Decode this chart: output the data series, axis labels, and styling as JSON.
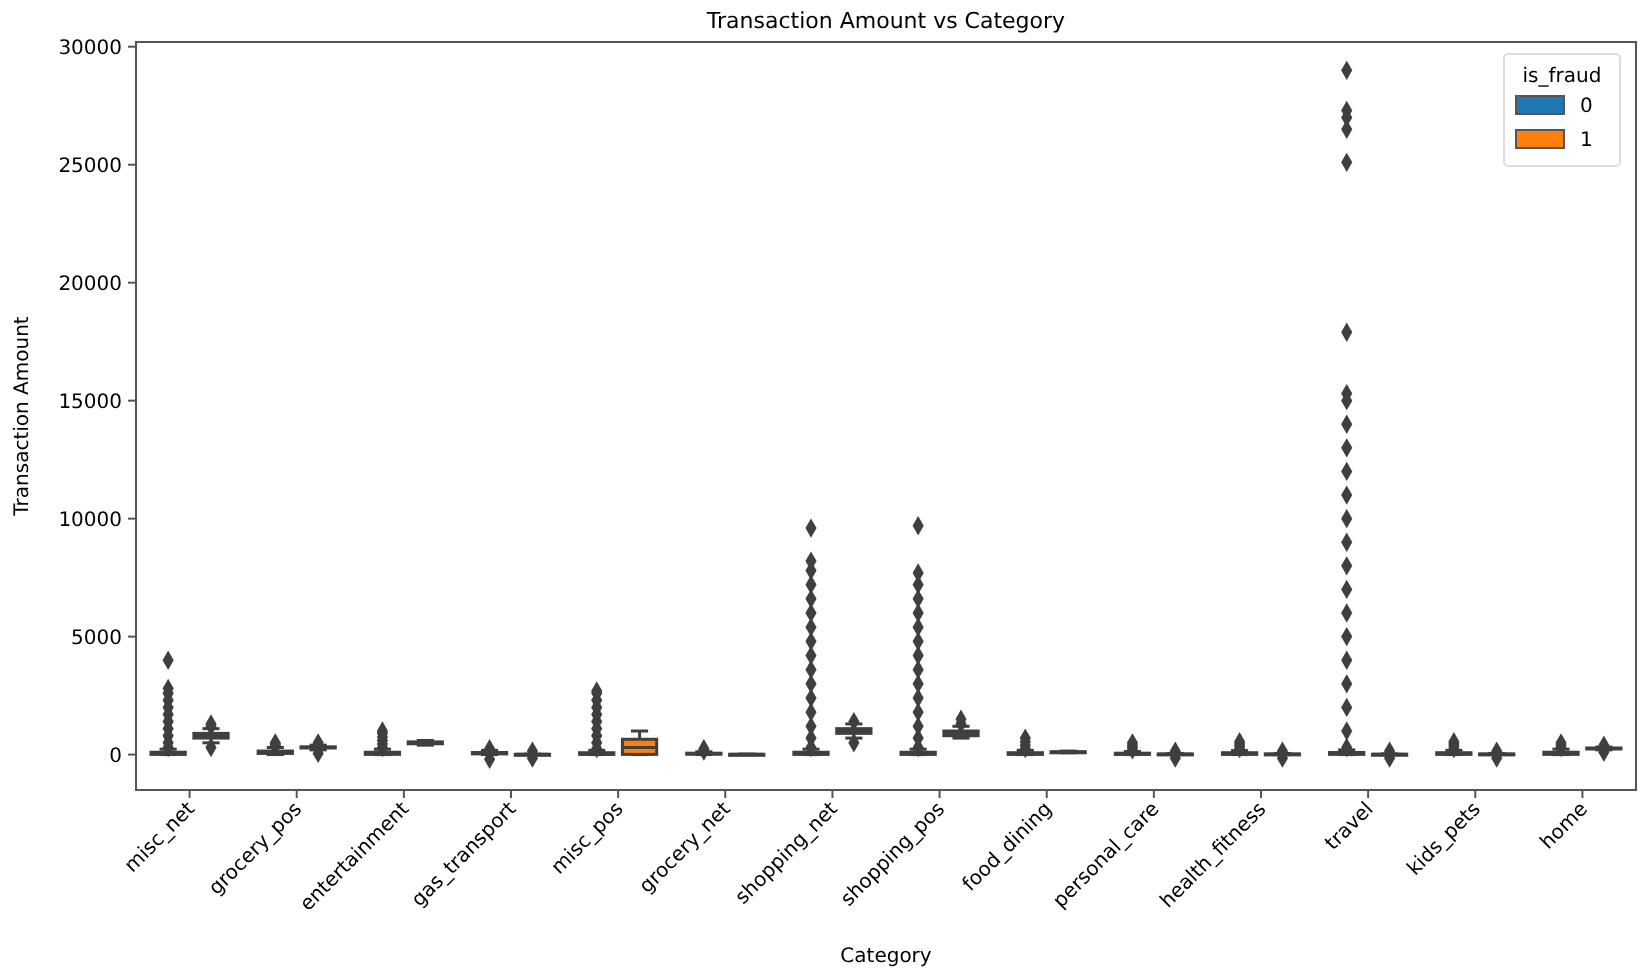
{
  "chart_data": {
    "type": "box",
    "title": "Transaction Amount vs Category",
    "xlabel": "Category",
    "ylabel": "Transaction Amount",
    "legend_title": "is_fraud",
    "legend": "top right",
    "marker": "diamond",
    "categories": [
      "misc_net",
      "grocery_pos",
      "entertainment",
      "gas_transport",
      "misc_pos",
      "grocery_net",
      "shopping_net",
      "shopping_pos",
      "food_dining",
      "personal_care",
      "health_fitness",
      "travel",
      "kids_pets",
      "home"
    ],
    "ylim": [
      -1500,
      30200
    ],
    "yticks": [
      0,
      5000,
      10000,
      15000,
      20000,
      25000,
      30000
    ],
    "series": [
      {
        "name": "0",
        "color": "#1f77b4",
        "boxes": [
          {
            "low": 1,
            "q1": 10,
            "median": 40,
            "q3": 100,
            "high": 230,
            "outliers": [
              300,
              500,
              800,
              1100,
              1400,
              1700,
              2000,
              2300,
              2600,
              2800,
              4000
            ]
          },
          {
            "low": 1,
            "q1": 50,
            "median": 100,
            "q3": 150,
            "high": 300,
            "outliers": [
              350,
              400,
              450,
              500
            ]
          },
          {
            "low": 1,
            "q1": 10,
            "median": 50,
            "q3": 100,
            "high": 230,
            "outliers": [
              300,
              450,
              600,
              750,
              900,
              1000
            ]
          },
          {
            "low": 1,
            "q1": 30,
            "median": 60,
            "q3": 90,
            "high": 180,
            "outliers": [
              -200,
              250
            ]
          },
          {
            "low": 1,
            "q1": 10,
            "median": 20,
            "q3": 80,
            "high": 180,
            "outliers": [
              250,
              500,
              800,
              1100,
              1400,
              1700,
              2000,
              2300,
              2600,
              2700
            ]
          },
          {
            "low": 1,
            "q1": 20,
            "median": 40,
            "q3": 60,
            "high": 120,
            "outliers": [
              150,
              200,
              250
            ]
          },
          {
            "low": 1,
            "q1": 10,
            "median": 40,
            "q3": 100,
            "high": 230,
            "outliers": [
              300,
              700,
              1200,
              1800,
              2400,
              3000,
              3600,
              4200,
              4800,
              5400,
              6000,
              6600,
              7200,
              7800,
              8200,
              9600
            ]
          },
          {
            "low": 1,
            "q1": 10,
            "median": 40,
            "q3": 100,
            "high": 230,
            "outliers": [
              300,
              700,
              1200,
              1800,
              2400,
              3000,
              3600,
              4200,
              4800,
              5400,
              6000,
              6600,
              7200,
              7700,
              9700
            ]
          },
          {
            "low": 1,
            "q1": 10,
            "median": 40,
            "q3": 80,
            "high": 180,
            "outliers": [
              250,
              400,
              550,
              700
            ]
          },
          {
            "low": 1,
            "q1": 10,
            "median": 30,
            "q3": 60,
            "high": 130,
            "outliers": [
              200,
              300,
              400,
              500
            ]
          },
          {
            "low": 1,
            "q1": 10,
            "median": 40,
            "q3": 80,
            "high": 170,
            "outliers": [
              250,
              350,
              450,
              550
            ]
          },
          {
            "low": 1,
            "q1": 10,
            "median": 60,
            "q3": 90,
            "high": 200,
            "outliers": [
              300,
              1000,
              2000,
              3000,
              4000,
              5000,
              6000,
              7000,
              8000,
              9000,
              10000,
              11000,
              12000,
              13000,
              14000,
              15000,
              15300,
              17900,
              25100,
              26500,
              27000,
              27300,
              29000
            ]
          },
          {
            "low": 1,
            "q1": 10,
            "median": 40,
            "q3": 80,
            "high": 180,
            "outliers": [
              250,
              350,
              450,
              550
            ]
          },
          {
            "low": 1,
            "q1": 10,
            "median": 50,
            "q3": 100,
            "high": 230,
            "outliers": [
              300,
              400,
              500
            ]
          }
        ]
      },
      {
        "name": "1",
        "color": "#ff7f0e",
        "boxes": [
          {
            "low": 500,
            "q1": 700,
            "median": 800,
            "q3": 900,
            "high": 1100,
            "outliers": [
              300,
              1200,
              1300
            ]
          },
          {
            "low": 200,
            "q1": 280,
            "median": 300,
            "q3": 330,
            "high": 400,
            "outliers": [
              50,
              500
            ]
          },
          {
            "low": 400,
            "q1": 460,
            "median": 500,
            "q3": 540,
            "high": 600
          },
          {
            "low": 1,
            "q1": 8,
            "median": 10,
            "q3": 12,
            "high": 20,
            "outliers": [
              -150,
              150
            ]
          },
          {
            "low": 1,
            "q1": 10,
            "median": 300,
            "q3": 650,
            "high": 1000
          },
          {
            "low": 1,
            "q1": 8,
            "median": 10,
            "q3": 12,
            "high": 20
          },
          {
            "low": 700,
            "q1": 900,
            "median": 1000,
            "q3": 1100,
            "high": 1300,
            "outliers": [
              500,
              1400
            ]
          },
          {
            "low": 700,
            "q1": 800,
            "median": 900,
            "q3": 1000,
            "high": 1200,
            "outliers": [
              1300,
              1500
            ]
          },
          {
            "low": 80,
            "q1": 100,
            "median": 110,
            "q3": 120,
            "high": 150
          },
          {
            "low": 1,
            "q1": 10,
            "median": 20,
            "q3": 30,
            "high": 50,
            "outliers": [
              -150,
              150
            ]
          },
          {
            "low": 1,
            "q1": 10,
            "median": 20,
            "q3": 30,
            "high": 50,
            "outliers": [
              -150,
              150
            ]
          },
          {
            "low": 1,
            "q1": 8,
            "median": 10,
            "q3": 15,
            "high": 30,
            "outliers": [
              -150,
              150
            ]
          },
          {
            "low": 1,
            "q1": 10,
            "median": 20,
            "q3": 30,
            "high": 50,
            "outliers": [
              -150,
              150
            ]
          },
          {
            "low": 200,
            "q1": 240,
            "median": 260,
            "q3": 280,
            "high": 320,
            "outliers": [
              100,
              400
            ]
          }
        ]
      }
    ]
  }
}
